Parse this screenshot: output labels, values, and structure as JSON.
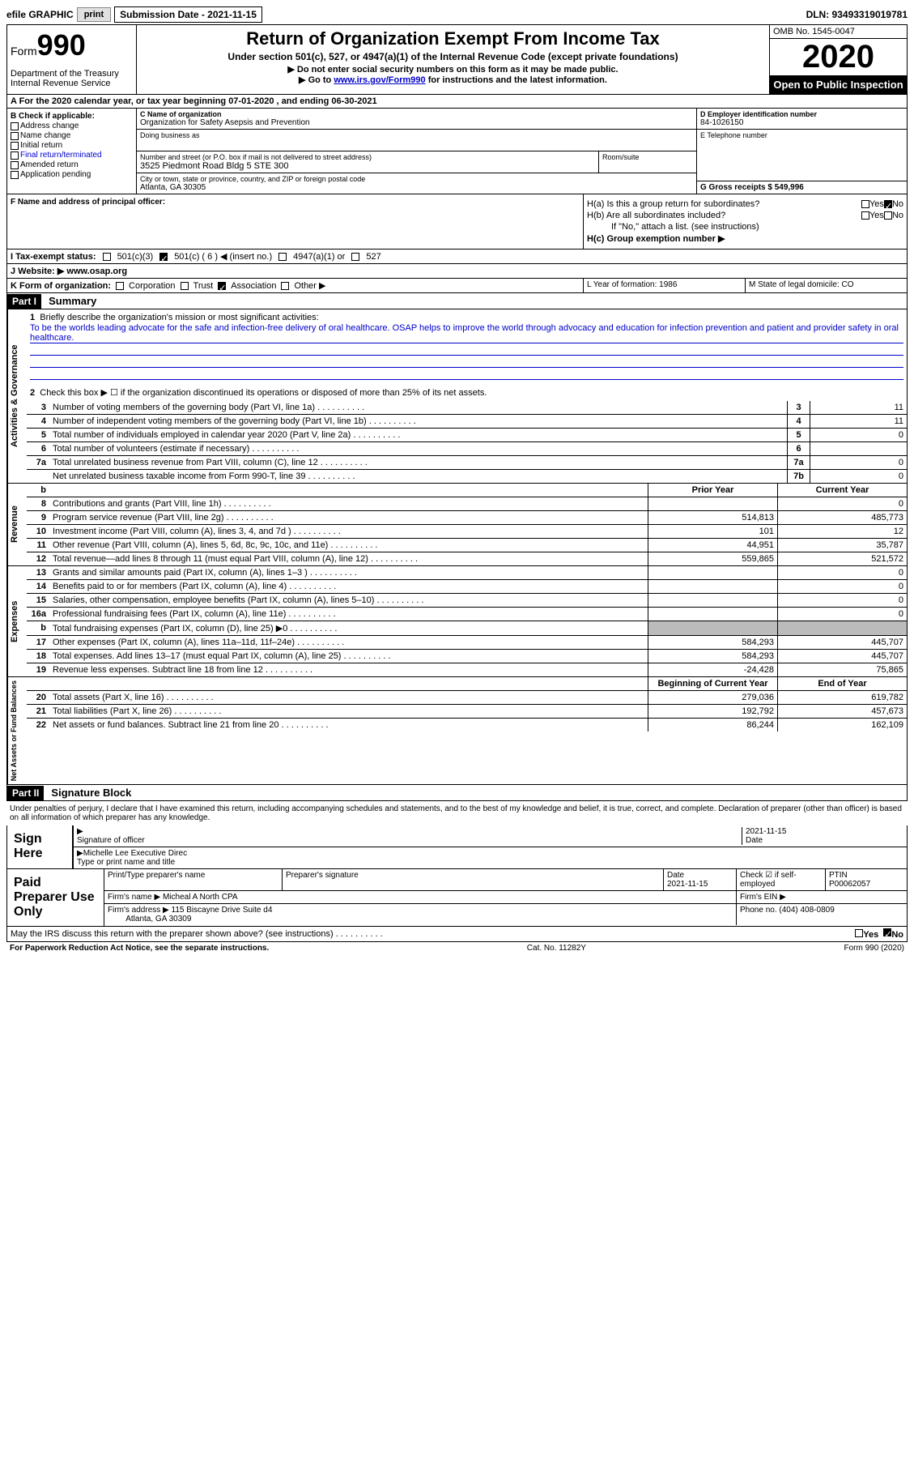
{
  "topbar": {
    "efile_label": "efile GRAPHIC",
    "print_btn": "print",
    "submission_label": "Submission Date - 2021-11-15",
    "dln": "DLN: 93493319019781"
  },
  "header": {
    "form_word": "Form",
    "form_num": "990",
    "dept": "Department of the Treasury\nInternal Revenue Service",
    "title": "Return of Organization Exempt From Income Tax",
    "subtitle": "Under section 501(c), 527, or 4947(a)(1) of the Internal Revenue Code (except private foundations)",
    "instr1": "▶ Do not enter social security numbers on this form as it may be made public.",
    "instr2_pre": "▶ Go to ",
    "instr2_link": "www.irs.gov/Form990",
    "instr2_post": " for instructions and the latest information.",
    "omb": "OMB No. 1545-0047",
    "year": "2020",
    "inspect": "Open to Public Inspection"
  },
  "period": "A For the 2020 calendar year, or tax year beginning 07-01-2020   , and ending 06-30-2021",
  "boxB": {
    "label": "B Check if applicable:",
    "opts": [
      "Address change",
      "Name change",
      "Initial return",
      "Final return/terminated",
      "Amended return",
      "Application pending"
    ]
  },
  "boxC": {
    "name_label": "C Name of organization",
    "name": "Organization for Safety Asepsis and Prevention",
    "dba_label": "Doing business as",
    "addr_label": "Number and street (or P.O. box if mail is not delivered to street address)",
    "room_label": "Room/suite",
    "addr": "3525 Piedmont Road Bldg 5 STE 300",
    "city_label": "City or town, state or province, country, and ZIP or foreign postal code",
    "city": "Atlanta, GA  30305"
  },
  "boxD": {
    "ein_label": "D Employer identification number",
    "ein": "84-1026150",
    "phone_label": "E Telephone number",
    "gross_label": "G Gross receipts $ 549,996"
  },
  "boxF": "F Name and address of principal officer:",
  "boxH": {
    "a_label": "H(a)  Is this a group return for subordinates?",
    "b_label": "H(b)  Are all subordinates included?",
    "b_note": "If \"No,\" attach a list. (see instructions)",
    "c_label": "H(c)  Group exemption number ▶",
    "yes": "Yes",
    "no": "No"
  },
  "rowI": {
    "label": "I   Tax-exempt status:",
    "c3": "501(c)(3)",
    "c": "501(c) ( 6 ) ◀ (insert no.)",
    "a1": "4947(a)(1) or",
    "s527": "527"
  },
  "rowJ": "J   Website: ▶  www.osap.org",
  "rowK": {
    "label": "K Form of organization:",
    "corp": "Corporation",
    "trust": "Trust",
    "assoc": "Association",
    "other": "Other ▶"
  },
  "rowL": "L Year of formation: 1986",
  "rowM": "M State of legal domicile: CO",
  "part1": {
    "header": "Part I",
    "title": "Summary",
    "tab_gov": "Activities & Governance",
    "tab_rev": "Revenue",
    "tab_exp": "Expenses",
    "tab_net": "Net Assets or Fund Balances",
    "q1": "Briefly describe the organization's mission or most significant activities:",
    "mission": "To be the worlds leading advocate for the safe and infection-free delivery of oral healthcare. OSAP helps to improve the world through advocacy and education for infection prevention and patient and provider safety in oral healthcare.",
    "q2": "Check this box ▶ ☐  if the organization discontinued its operations or disposed of more than 25% of its net assets.",
    "lines_gov": [
      {
        "n": "3",
        "t": "Number of voting members of the governing body (Part VI, line 1a)",
        "box": "3",
        "v": "11"
      },
      {
        "n": "4",
        "t": "Number of independent voting members of the governing body (Part VI, line 1b)",
        "box": "4",
        "v": "11"
      },
      {
        "n": "5",
        "t": "Total number of individuals employed in calendar year 2020 (Part V, line 2a)",
        "box": "5",
        "v": "0"
      },
      {
        "n": "6",
        "t": "Total number of volunteers (estimate if necessary)",
        "box": "6",
        "v": ""
      },
      {
        "n": "7a",
        "t": "Total unrelated business revenue from Part VIII, column (C), line 12",
        "box": "7a",
        "v": "0"
      },
      {
        "n": "",
        "t": "Net unrelated business taxable income from Form 990-T, line 39",
        "box": "7b",
        "v": "0"
      }
    ],
    "hdr_prior": "Prior Year",
    "hdr_curr": "Current Year",
    "hdr_begin": "Beginning of Current Year",
    "hdr_end": "End of Year",
    "lines_rev": [
      {
        "n": "8",
        "t": "Contributions and grants (Part VIII, line 1h)",
        "p": "",
        "c": "0"
      },
      {
        "n": "9",
        "t": "Program service revenue (Part VIII, line 2g)",
        "p": "514,813",
        "c": "485,773"
      },
      {
        "n": "10",
        "t": "Investment income (Part VIII, column (A), lines 3, 4, and 7d )",
        "p": "101",
        "c": "12"
      },
      {
        "n": "11",
        "t": "Other revenue (Part VIII, column (A), lines 5, 6d, 8c, 9c, 10c, and 11e)",
        "p": "44,951",
        "c": "35,787"
      },
      {
        "n": "12",
        "t": "Total revenue—add lines 8 through 11 (must equal Part VIII, column (A), line 12)",
        "p": "559,865",
        "c": "521,572"
      }
    ],
    "lines_exp": [
      {
        "n": "13",
        "t": "Grants and similar amounts paid (Part IX, column (A), lines 1–3 )",
        "p": "",
        "c": "0"
      },
      {
        "n": "14",
        "t": "Benefits paid to or for members (Part IX, column (A), line 4)",
        "p": "",
        "c": "0"
      },
      {
        "n": "15",
        "t": "Salaries, other compensation, employee benefits (Part IX, column (A), lines 5–10)",
        "p": "",
        "c": "0"
      },
      {
        "n": "16a",
        "t": "Professional fundraising fees (Part IX, column (A), line 11e)",
        "p": "",
        "c": "0"
      },
      {
        "n": "b",
        "t": "Total fundraising expenses (Part IX, column (D), line 25) ▶0",
        "p": "GREY",
        "c": "GREY"
      },
      {
        "n": "17",
        "t": "Other expenses (Part IX, column (A), lines 11a–11d, 11f–24e)",
        "p": "584,293",
        "c": "445,707"
      },
      {
        "n": "18",
        "t": "Total expenses. Add lines 13–17 (must equal Part IX, column (A), line 25)",
        "p": "584,293",
        "c": "445,707"
      },
      {
        "n": "19",
        "t": "Revenue less expenses. Subtract line 18 from line 12",
        "p": "-24,428",
        "c": "75,865"
      }
    ],
    "lines_net": [
      {
        "n": "20",
        "t": "Total assets (Part X, line 16)",
        "p": "279,036",
        "c": "619,782"
      },
      {
        "n": "21",
        "t": "Total liabilities (Part X, line 26)",
        "p": "192,792",
        "c": "457,673"
      },
      {
        "n": "22",
        "t": "Net assets or fund balances. Subtract line 21 from line 20",
        "p": "86,244",
        "c": "162,109"
      }
    ]
  },
  "part2": {
    "header": "Part II",
    "title": "Signature Block",
    "decl": "Under penalties of perjury, I declare that I have examined this return, including accompanying schedules and statements, and to the best of my knowledge and belief, it is true, correct, and complete. Declaration of preparer (other than officer) is based on all information of which preparer has any knowledge.",
    "sign_here": "Sign Here",
    "sig_officer": "Signature of officer",
    "sig_date": "2021-11-15",
    "date_label": "Date",
    "officer_name": "Michelle Lee  Executive Direc",
    "type_name": "Type or print name and title",
    "paid_label": "Paid Preparer Use Only",
    "prep_name_label": "Print/Type preparer's name",
    "prep_sig_label": "Preparer's signature",
    "prep_date_label": "Date",
    "prep_date": "2021-11-15",
    "check_self": "Check ☑ if self-employed",
    "ptin_label": "PTIN",
    "ptin": "P00062057",
    "firm_name_label": "Firm's name   ▶",
    "firm_name": "Micheal A North CPA",
    "firm_ein_label": "Firm's EIN ▶",
    "firm_addr_label": "Firm's address ▶",
    "firm_addr": "115 Biscayne Drive Suite d4",
    "firm_city": "Atlanta, GA  30309",
    "firm_phone_label": "Phone no. (404) 408-0809",
    "discuss": "May the IRS discuss this return with the preparer shown above? (see instructions)"
  },
  "footer": {
    "left": "For Paperwork Reduction Act Notice, see the separate instructions.",
    "mid": "Cat. No. 11282Y",
    "right": "Form 990 (2020)"
  }
}
